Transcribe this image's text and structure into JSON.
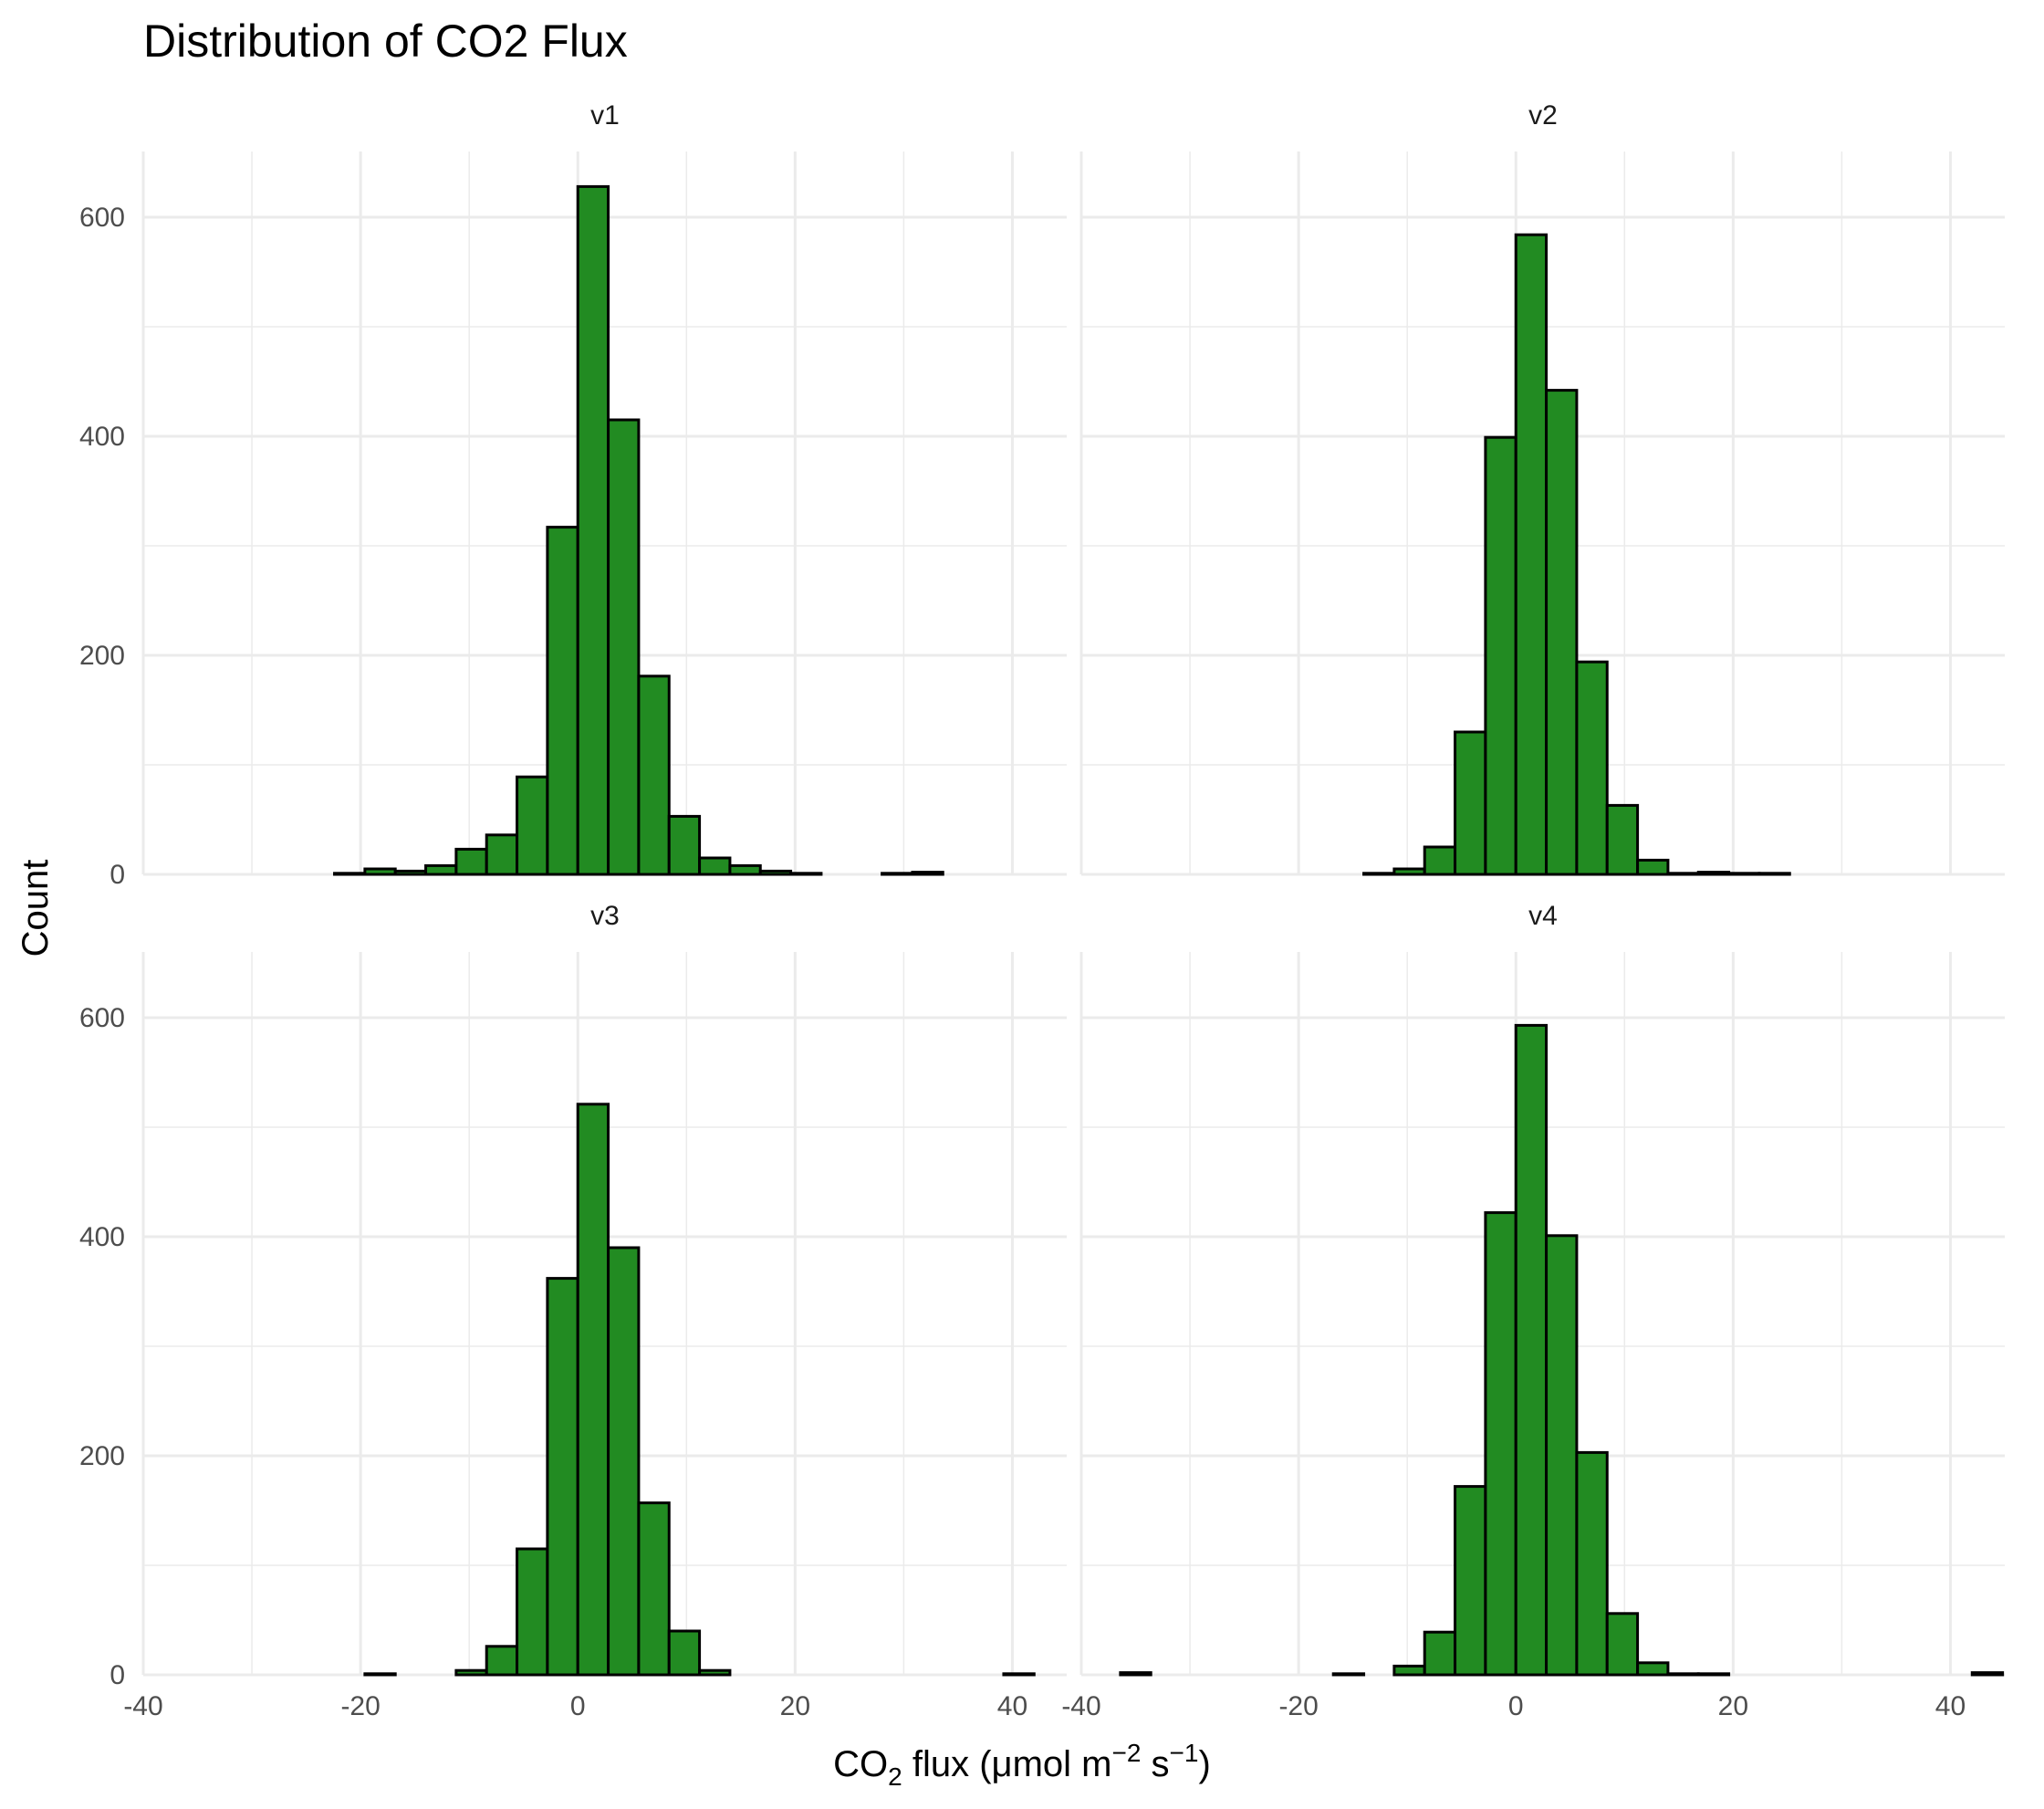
{
  "chart_data": {
    "type": "bar",
    "title": "Distribution of CO2 Flux",
    "xlabel": {
      "pre": "CO",
      "sub": "2",
      "mid": " flux (μmol m",
      "sup1": "−2",
      "mid2": " s",
      "sup2": "−1",
      "post": ")"
    },
    "ylabel": "Count",
    "xlim": [
      -40,
      45
    ],
    "ylim": [
      0,
      660
    ],
    "x_ticks": [
      -40,
      -20,
      0,
      20,
      40
    ],
    "x_tick_labels": [
      "-40",
      "-20",
      "0",
      "20",
      "40"
    ],
    "y_ticks": [
      0,
      200,
      400,
      600
    ],
    "y_tick_labels": [
      "0",
      "200",
      "400",
      "600"
    ],
    "bin_width": 2.8,
    "bin_starts": [
      -36.4,
      -33.6,
      -30.8,
      -28.0,
      -25.2,
      -22.4,
      -19.6,
      -16.8,
      -14.0,
      -11.2,
      -8.4,
      -5.6,
      -2.8,
      0.0,
      2.8,
      5.6,
      8.4,
      11.2,
      14.0,
      16.8,
      19.6,
      22.4,
      25.2,
      28.0,
      30.8,
      33.6,
      36.4,
      39.2,
      42.0
    ],
    "bar_color": "#228B22",
    "grid": true,
    "facets": [
      {
        "label": "v1",
        "values": [
          0,
          0,
          0,
          0,
          0,
          1,
          5,
          3,
          8,
          23,
          36,
          89,
          317,
          628,
          415,
          181,
          53,
          15,
          8,
          3,
          1,
          0,
          0,
          1,
          2,
          0,
          0,
          0,
          0
        ]
      },
      {
        "label": "v2",
        "values": [
          0,
          0,
          0,
          0,
          0,
          0,
          0,
          0,
          1,
          5,
          25,
          130,
          399,
          584,
          442,
          194,
          63,
          13,
          1,
          2,
          1,
          1,
          0,
          0,
          0,
          0,
          0,
          0,
          0
        ]
      },
      {
        "label": "v3",
        "values": [
          0,
          0,
          0,
          0,
          0,
          0,
          1,
          0,
          0,
          4,
          26,
          115,
          362,
          521,
          390,
          157,
          40,
          4,
          0,
          0,
          0,
          0,
          0,
          0,
          0,
          0,
          0,
          1,
          0
        ]
      },
      {
        "label": "v4",
        "values": [
          2,
          0,
          0,
          0,
          0,
          0,
          0,
          1,
          0,
          8,
          39,
          172,
          422,
          593,
          401,
          203,
          56,
          11,
          1,
          1,
          0,
          0,
          0,
          0,
          0,
          0,
          0,
          0,
          2
        ]
      }
    ]
  }
}
